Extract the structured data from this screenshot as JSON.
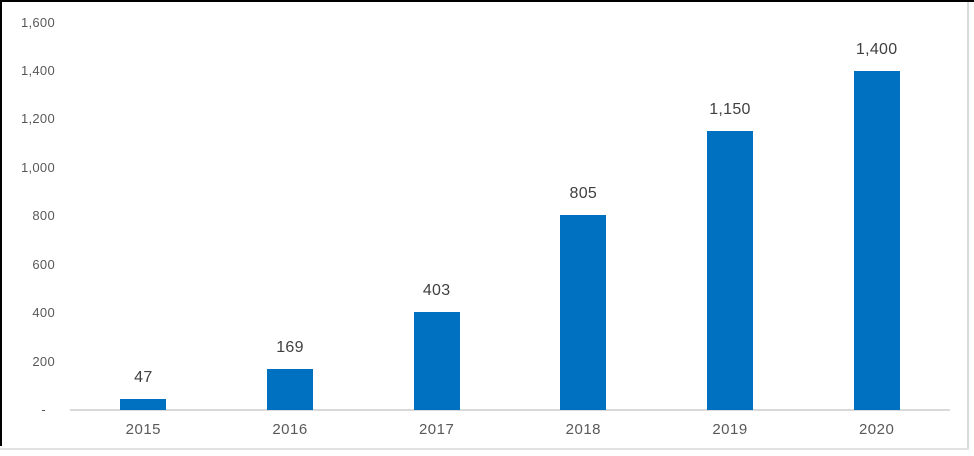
{
  "chart_data": {
    "type": "bar",
    "title": "",
    "xlabel": "",
    "ylabel": "",
    "categories": [
      "2015",
      "2016",
      "2017",
      "2018",
      "2019",
      "2020"
    ],
    "values": [
      47,
      169,
      403,
      805,
      1150,
      1400
    ],
    "value_labels": [
      "47",
      "169",
      "403",
      "805",
      "1,150",
      "1,400"
    ],
    "y_ticks": [
      {
        "value": 1600,
        "label": "1,600"
      },
      {
        "value": 1400,
        "label": "1,400"
      },
      {
        "value": 1200,
        "label": "1,200"
      },
      {
        "value": 1000,
        "label": "1,000"
      },
      {
        "value": 800,
        "label": "800"
      },
      {
        "value": 600,
        "label": "600"
      },
      {
        "value": 400,
        "label": "400"
      },
      {
        "value": 200,
        "label": "200"
      },
      {
        "value": 0,
        "label": "-"
      }
    ],
    "ylim": [
      0,
      1600
    ],
    "grid": false,
    "legend": false,
    "colors": {
      "bar": "#0070c0",
      "axis_line": "#d9d9d9",
      "tick_label": "#595959",
      "data_label": "#404040",
      "background": "#ffffff"
    }
  }
}
